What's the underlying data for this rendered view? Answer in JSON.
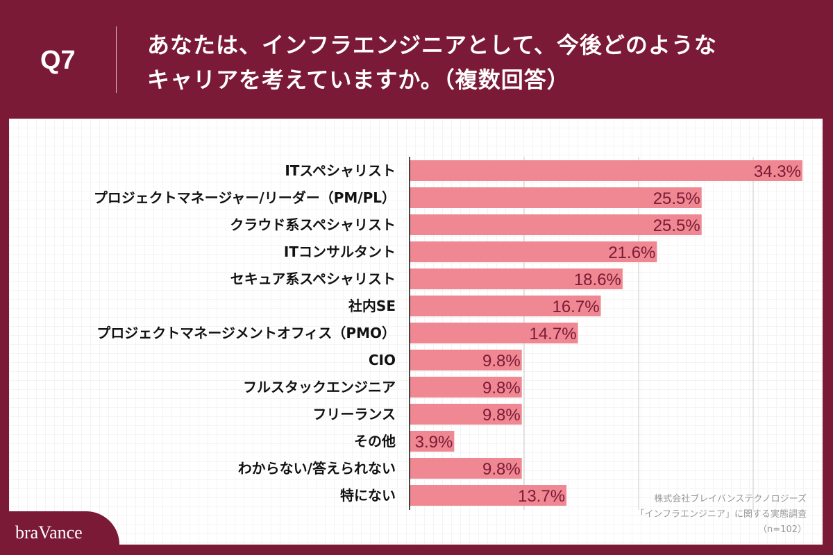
{
  "header": {
    "question": "Q7",
    "title_line1": "あなたは、インフラエンジニアとして、今後どのような",
    "title_line2": "キャリアを考えていますか。（複数回答）"
  },
  "source": {
    "line1": "株式会社ブレイバンステクノロジーズ",
    "line2": "「インフラエンジニア」に関する実態調査",
    "line3": "（n=102）"
  },
  "logo": "braVance",
  "colors": {
    "background": "#7b1a36",
    "bar": "#ef8893",
    "value_label": "#7a1a35"
  },
  "chart_data": {
    "type": "bar",
    "orientation": "horizontal",
    "xlim": [
      0,
      35
    ],
    "grid": true,
    "categories": [
      "ITスペシャリスト",
      "プロジェクトマネージャー/リーダー（PM/PL）",
      "クラウド系スペシャリスト",
      "ITコンサルタント",
      "セキュア系スペシャリスト",
      "社内SE",
      "プロジェクトマネージメントオフィス（PMO）",
      "CIO",
      "フルスタックエンジニア",
      "フリーランス",
      "その他",
      "わからない/答えられない",
      "特にない"
    ],
    "values": [
      34.3,
      25.5,
      25.5,
      21.6,
      18.6,
      16.7,
      14.7,
      9.8,
      9.8,
      9.8,
      3.9,
      9.8,
      13.7
    ],
    "value_labels": [
      "34.3%",
      "25.5%",
      "25.5%",
      "21.6%",
      "18.6%",
      "16.7%",
      "14.7%",
      "9.8%",
      "9.8%",
      "9.8%",
      "3.9%",
      "9.8%",
      "13.7%"
    ]
  }
}
